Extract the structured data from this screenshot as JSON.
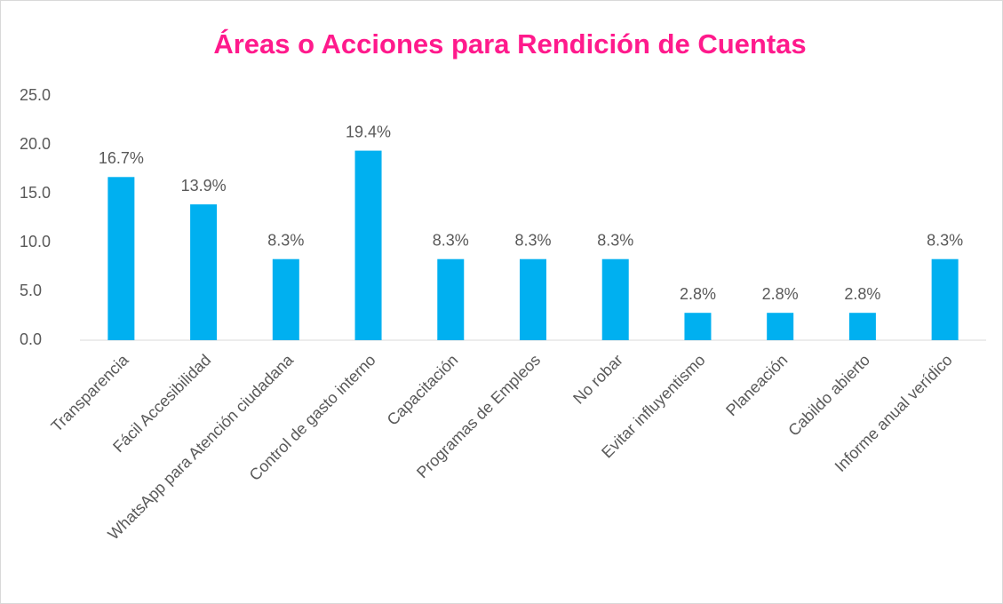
{
  "chart_data": {
    "type": "bar",
    "title": "Áreas o Acciones para Rendición de Cuentas",
    "categories": [
      "Transparencia",
      "Fácil Accesibilidad",
      "WhatsApp para Atención ciudadana",
      "Control de gasto interno",
      "Capacitación",
      "Programas de Empleos",
      "No robar",
      "Evitar influyentismo",
      "Planeación",
      "Cabildo abierto",
      "Informe anual verídico"
    ],
    "values": [
      16.7,
      13.9,
      8.3,
      19.4,
      8.3,
      8.3,
      8.3,
      2.8,
      2.8,
      2.8,
      8.3
    ],
    "value_labels": [
      "16.7%",
      "13.9%",
      "8.3%",
      "19.4%",
      "8.3%",
      "8.3%",
      "8.3%",
      "2.8%",
      "2.8%",
      "2.8%",
      "8.3%"
    ],
    "color": "#00b0f0",
    "ylim": [
      0,
      25
    ],
    "yticks": [
      {
        "value": 0,
        "label": "0.0"
      },
      {
        "value": 5,
        "label": "5.0"
      },
      {
        "value": 10,
        "label": "10.0"
      },
      {
        "value": 15,
        "label": "15.0"
      },
      {
        "value": 20,
        "label": "20.0"
      },
      {
        "value": 25,
        "label": "25.0"
      }
    ],
    "grid": false
  }
}
